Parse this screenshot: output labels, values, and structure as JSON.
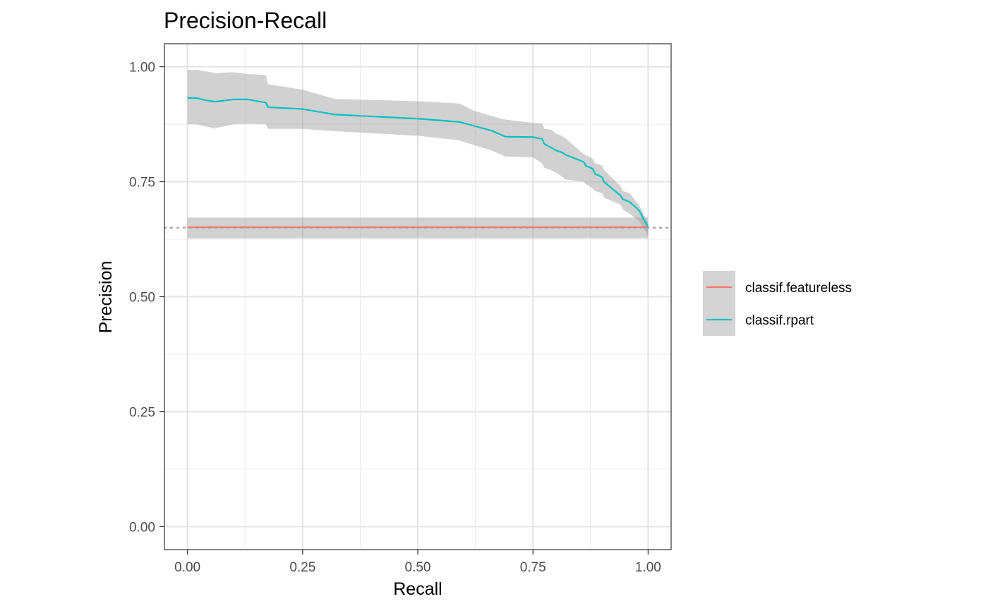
{
  "chart_data": {
    "type": "line",
    "title": "Precision-Recall",
    "xlabel": "Recall",
    "ylabel": "Precision",
    "xlim": [
      -0.05,
      1.05
    ],
    "ylim": [
      -0.05,
      1.05
    ],
    "x_ticks": [
      0.0,
      0.25,
      0.5,
      0.75,
      1.0
    ],
    "x_tick_labels": [
      "0.00",
      "0.25",
      "0.50",
      "0.75",
      "1.00"
    ],
    "y_ticks": [
      0.0,
      0.25,
      0.5,
      0.75,
      1.0
    ],
    "y_tick_labels": [
      "0.00",
      "0.25",
      "0.50",
      "0.75",
      "1.00"
    ],
    "grid": true,
    "legend_position": "right",
    "baseline": {
      "y": 0.65,
      "style": "dotted",
      "color": "#aaaaaa"
    },
    "series": [
      {
        "name": "classif.featureless",
        "color": "#F8766D",
        "x": [
          0.0,
          1.0
        ],
        "y": [
          0.651,
          0.651
        ],
        "ribbon_upper": [
          0.672,
          0.672
        ],
        "ribbon_lower": [
          0.627,
          0.627
        ]
      },
      {
        "name": "classif.rpart",
        "color": "#00BFC4",
        "x": [
          0.0,
          0.02,
          0.04,
          0.06,
          0.1,
          0.13,
          0.17,
          0.175,
          0.25,
          0.32,
          0.5,
          0.59,
          0.62,
          0.66,
          0.69,
          0.75,
          0.77,
          0.775,
          0.79,
          0.8,
          0.815,
          0.82,
          0.86,
          0.865,
          0.88,
          0.885,
          0.9,
          0.905,
          0.94,
          0.945,
          0.96,
          0.98,
          1.0
        ],
        "y": [
          0.932,
          0.932,
          0.927,
          0.924,
          0.929,
          0.929,
          0.922,
          0.912,
          0.908,
          0.896,
          0.887,
          0.88,
          0.872,
          0.861,
          0.848,
          0.847,
          0.843,
          0.832,
          0.824,
          0.818,
          0.813,
          0.809,
          0.793,
          0.785,
          0.778,
          0.767,
          0.76,
          0.749,
          0.72,
          0.712,
          0.706,
          0.688,
          0.651
        ],
        "ribbon_upper": [
          0.993,
          0.993,
          0.99,
          0.986,
          0.988,
          0.984,
          0.982,
          0.962,
          0.95,
          0.93,
          0.925,
          0.92,
          0.905,
          0.893,
          0.885,
          0.878,
          0.877,
          0.865,
          0.863,
          0.855,
          0.848,
          0.845,
          0.81,
          0.808,
          0.8,
          0.79,
          0.785,
          0.775,
          0.74,
          0.73,
          0.725,
          0.7,
          0.66
        ],
        "ribbon_lower": [
          0.875,
          0.875,
          0.87,
          0.866,
          0.875,
          0.876,
          0.875,
          0.865,
          0.865,
          0.86,
          0.85,
          0.84,
          0.83,
          0.818,
          0.805,
          0.803,
          0.79,
          0.78,
          0.775,
          0.77,
          0.76,
          0.755,
          0.75,
          0.745,
          0.735,
          0.73,
          0.725,
          0.715,
          0.7,
          0.69,
          0.68,
          0.665,
          0.632
        ]
      }
    ]
  }
}
